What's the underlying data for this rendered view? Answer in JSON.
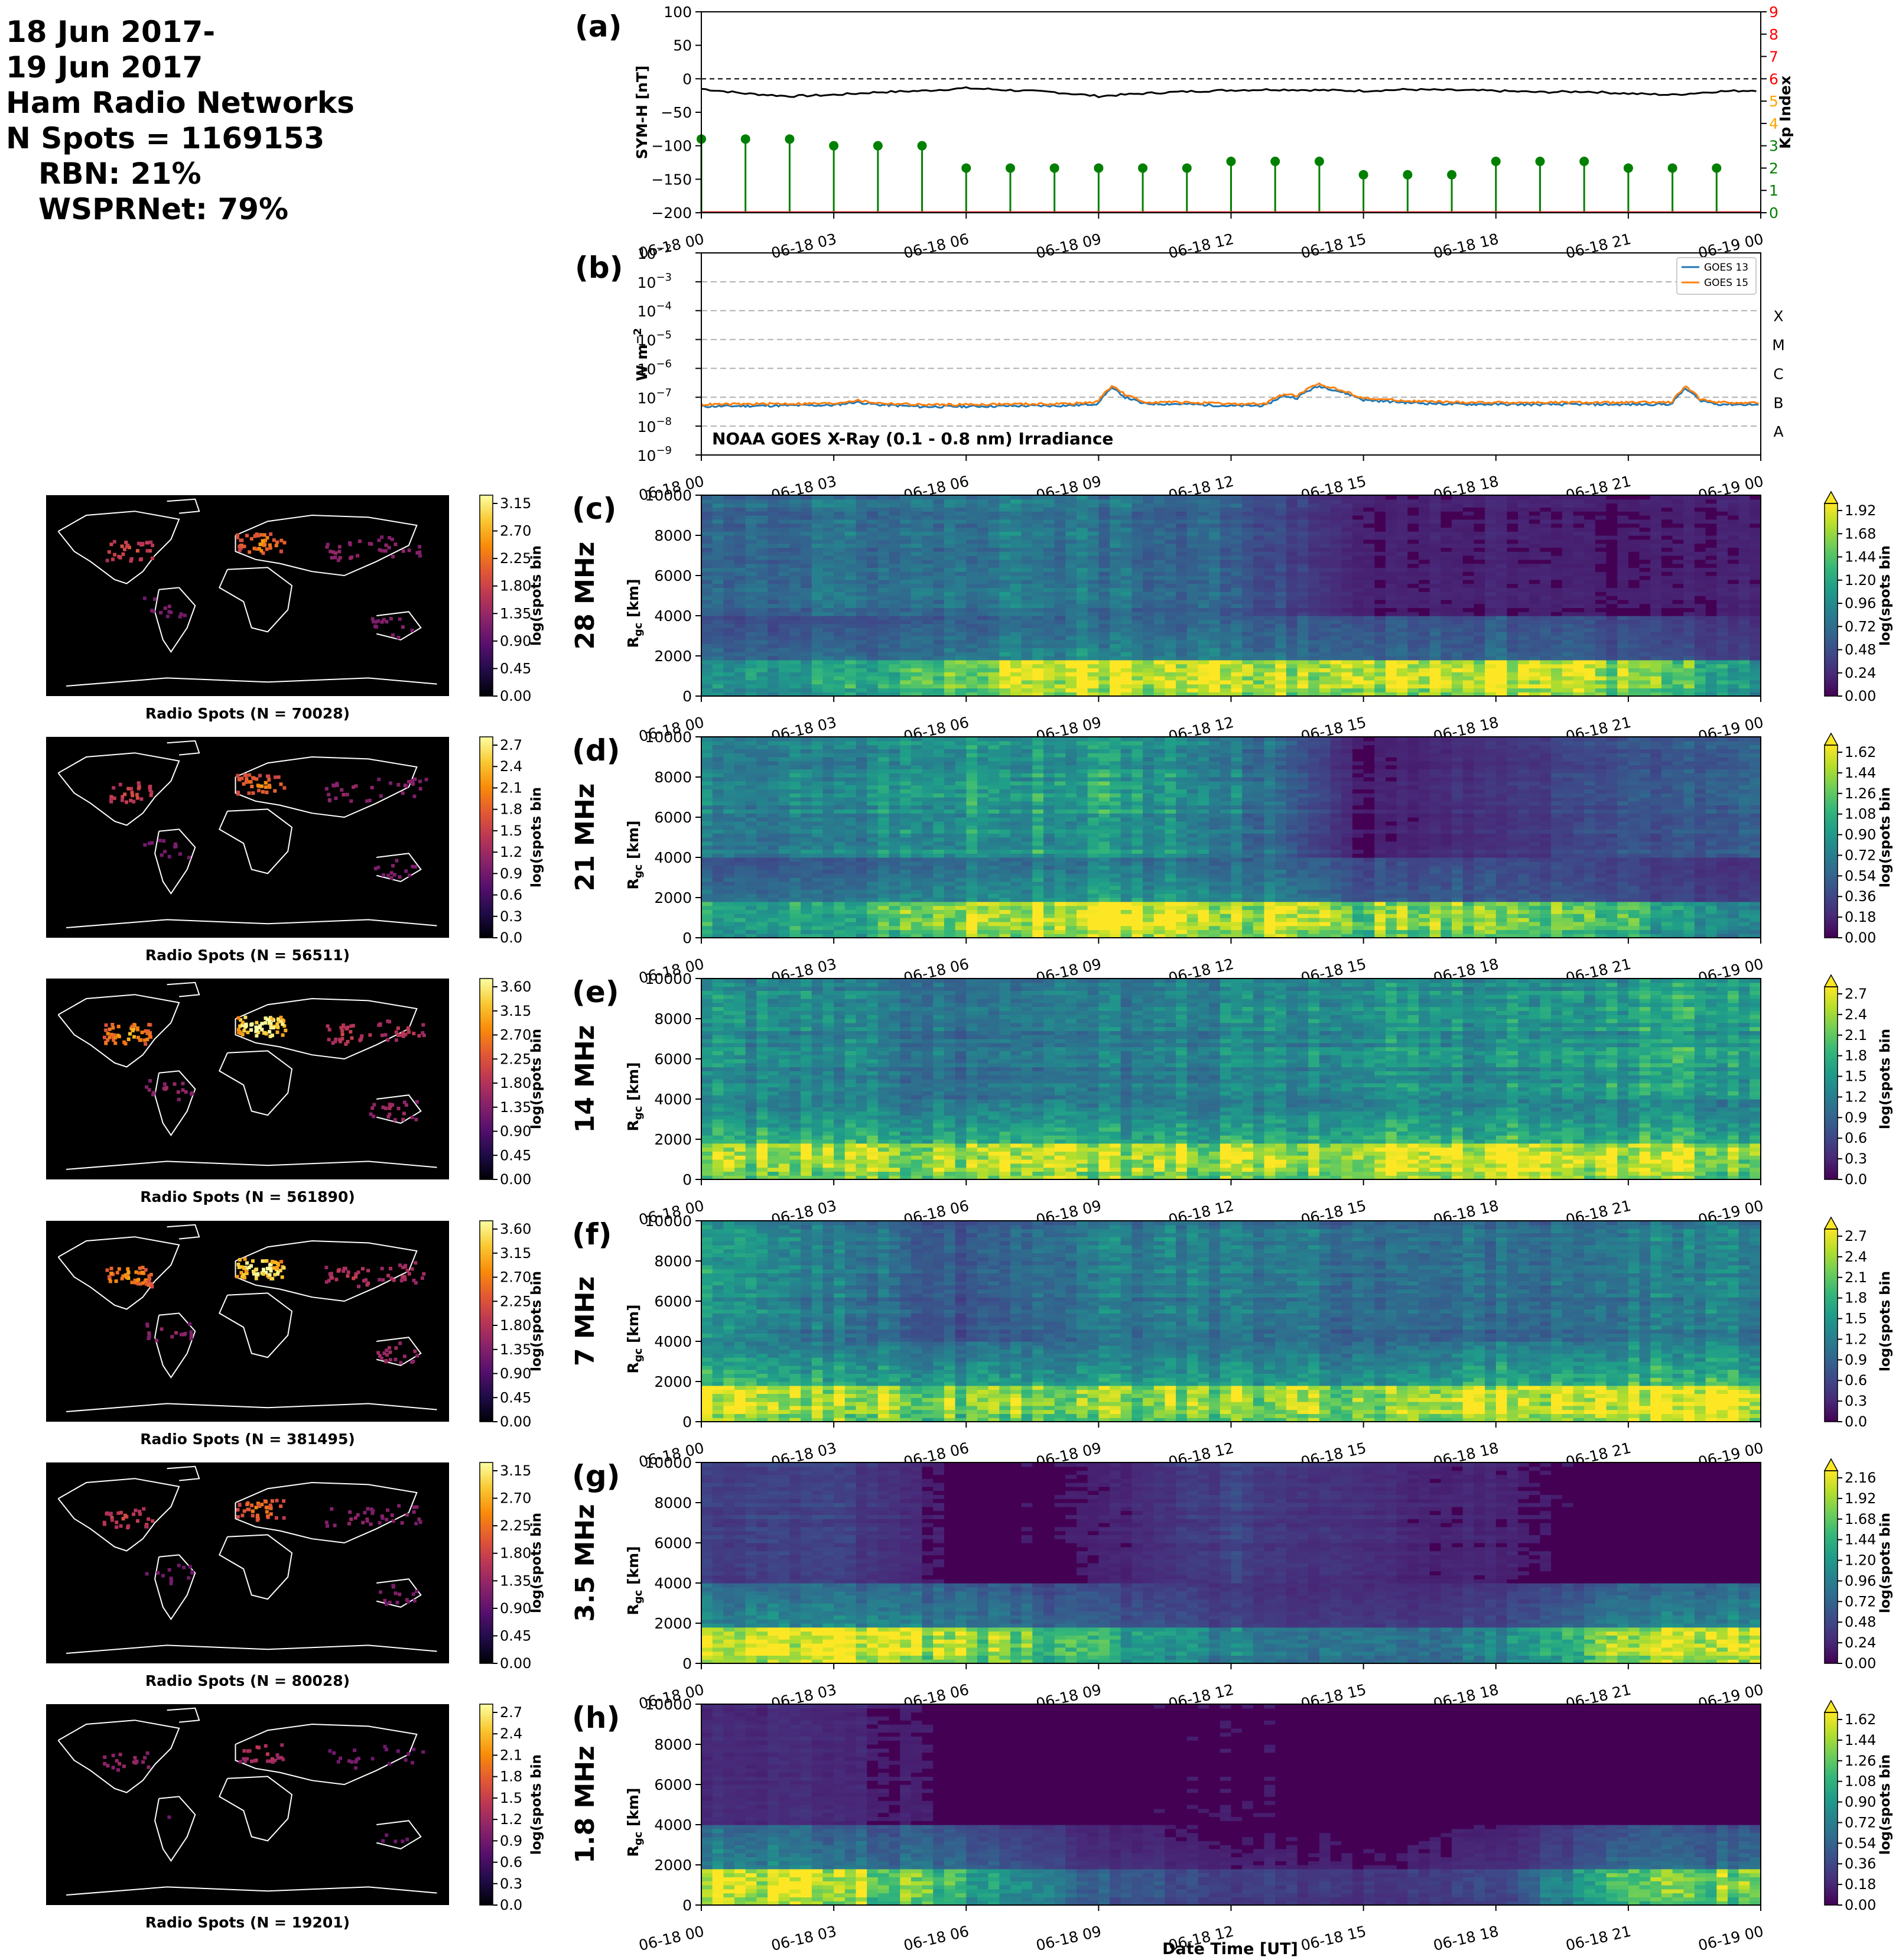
{
  "header": {
    "line1": "18 Jun 2017-",
    "line2": "19 Jun 2017",
    "line3": "Ham Radio Networks",
    "line4": "N Spots = 1169153",
    "line5": "RBN: 21%",
    "line6": "WSPRNet: 79%"
  },
  "time_ticks": [
    "06-18 00",
    "06-18 03",
    "06-18 06",
    "06-18 09",
    "06-18 12",
    "06-18 15",
    "06-18 18",
    "06-18 21",
    "06-19 00"
  ],
  "xlabel": "Date Time [UT]",
  "colors": {
    "symh_line": "#000000",
    "kp_stem": "#008000",
    "kp_axis": "#ff0000",
    "goes13": "#1f77b4",
    "goes15": "#ff7f0e",
    "map_bg": "#000000",
    "coast": "#ffffff"
  },
  "chart_data": [
    {
      "id": "a",
      "panel_label": "(a)",
      "type": "line",
      "ylabel": "SYM-H [nT]",
      "ylabel2": "Kp Index",
      "ylim": [
        -200,
        100
      ],
      "yticks": [
        100,
        50,
        0,
        -50,
        -100,
        -150,
        -200
      ],
      "ylim2": [
        0,
        9
      ],
      "yticks2": [
        0,
        1,
        2,
        3,
        4,
        5,
        6,
        7,
        8,
        9
      ],
      "xlim_hours": [
        0,
        24
      ],
      "symh": {
        "x": [
          0,
          1,
          2,
          3,
          4,
          5,
          6,
          7,
          8,
          9,
          10,
          11,
          12,
          13,
          14,
          15,
          16,
          17,
          18,
          19,
          20,
          21,
          22,
          23,
          24
        ],
        "y": [
          -15,
          -22,
          -26,
          -24,
          -20,
          -18,
          -14,
          -17,
          -20,
          -26,
          -22,
          -19,
          -17,
          -16,
          -17,
          -18,
          -16,
          -17,
          -18,
          -20,
          -19,
          -22,
          -24,
          -19,
          -17
        ]
      },
      "kp": {
        "x": [
          0,
          1,
          2,
          3,
          4,
          5,
          6,
          7,
          8,
          9,
          10,
          11,
          12,
          13,
          14,
          15,
          16,
          17,
          18,
          19,
          20,
          21,
          22,
          23
        ],
        "y": [
          3.3,
          3.3,
          3.3,
          3.0,
          3.0,
          3.0,
          2.0,
          2.0,
          2.0,
          2.0,
          2.0,
          2.0,
          2.3,
          2.3,
          2.3,
          1.7,
          1.7,
          1.7,
          2.3,
          2.3,
          2.3,
          2.0,
          2.0,
          2.0
        ]
      }
    },
    {
      "id": "b",
      "panel_label": "(b)",
      "type": "line",
      "ylabel": "W m$^{-2}$",
      "ylabel_text": "W m",
      "ylabel_sup": "−2",
      "log_ylim": [
        -9,
        -2
      ],
      "ytick_exps": [
        "−2",
        "−3",
        "−4",
        "−5",
        "−6",
        "−7",
        "−8",
        "−9"
      ],
      "class_labels": [
        {
          "label": "X",
          "exp": -4
        },
        {
          "label": "M",
          "exp": -5
        },
        {
          "label": "C",
          "exp": -6
        },
        {
          "label": "B",
          "exp": -7
        },
        {
          "label": "A",
          "exp": -8
        }
      ],
      "annotation": "NOAA GOES X-Ray (0.1 - 0.8 nm) Irradiance",
      "legend": [
        "GOES 13",
        "GOES 15"
      ],
      "legend_loc": "top-right",
      "series": [
        {
          "name": "GOES 13",
          "x": [
            0,
            1,
            2,
            3,
            3.5,
            4,
            5,
            6,
            7,
            8,
            8.5,
            9,
            9.3,
            9.6,
            10,
            11,
            12,
            12.8,
            13.2,
            13.5,
            14,
            14.5,
            15,
            16,
            17,
            18,
            19,
            20,
            21,
            22,
            22.3,
            22.6,
            23,
            24
          ],
          "y": [
            4.8e-08,
            5e-08,
            5.2e-08,
            5.3e-08,
            6.8e-08,
            5.5e-08,
            4.7e-08,
            4.8e-08,
            5e-08,
            5.1e-08,
            5.3e-08,
            6e-08,
            2e-07,
            1e-07,
            6e-08,
            5.8e-08,
            5e-08,
            5.2e-08,
            1.1e-07,
            9.5e-08,
            2.4e-07,
            1.5e-07,
            8e-08,
            6.5e-08,
            5.8e-08,
            5.7e-08,
            5.6e-08,
            5.7e-08,
            5.6e-08,
            5.8e-08,
            1.9e-07,
            8e-08,
            5.8e-08,
            5.5e-08
          ]
        },
        {
          "name": "GOES 15",
          "x": [
            0,
            1,
            2,
            3,
            3.5,
            4,
            5,
            6,
            7,
            8,
            8.5,
            9,
            9.3,
            9.6,
            10,
            11,
            12,
            12.8,
            13.2,
            13.5,
            14,
            14.5,
            15,
            16,
            17,
            18,
            19,
            20,
            21,
            22,
            22.3,
            22.6,
            23,
            24
          ],
          "y": [
            5.6e-08,
            5.8e-08,
            6e-08,
            6.1e-08,
            7.8e-08,
            6.3e-08,
            5.5e-08,
            5.6e-08,
            5.8e-08,
            5.9e-08,
            6.1e-08,
            6.9e-08,
            2.4e-07,
            1.2e-07,
            6.9e-08,
            6.6e-08,
            5.8e-08,
            6e-08,
            1.3e-07,
            1.1e-07,
            2.8e-07,
            1.7e-07,
            9.2e-08,
            7.5e-08,
            6.7e-08,
            6.6e-08,
            6.5e-08,
            6.6e-08,
            6.5e-08,
            6.7e-08,
            2.2e-07,
            9.2e-08,
            6.7e-08,
            6.4e-08
          ]
        }
      ]
    },
    {
      "id": "c",
      "panel_label": "(c)",
      "type": "heatmap",
      "band": "28 MHz",
      "ylabel": "R$_{gc}$ [km]",
      "ylabel_main": "R",
      "ylabel_sub": "gc",
      "ylabel_unit": " [km]",
      "ylim": [
        0,
        10000
      ],
      "yticks": [
        0,
        2000,
        4000,
        6000,
        8000,
        10000
      ],
      "cbar_label": "log(spots bin$^{-1}$)",
      "cbar_ticks": [
        "0.00",
        "0.24",
        "0.48",
        "0.72",
        "0.96",
        "1.20",
        "1.44",
        "1.68",
        "1.92"
      ],
      "map_title": "Radio Spots (N = 70028)",
      "map_cbar_ticks": [
        "0.00",
        "0.45",
        "0.90",
        "1.35",
        "1.80",
        "2.25",
        "2.70",
        "3.15"
      ],
      "profile": {
        "t": [
          0,
          3,
          6,
          9,
          12,
          15,
          18,
          21,
          24
        ],
        "near": [
          0.55,
          0.55,
          0.85,
          1.0,
          0.95,
          0.85,
          1.0,
          0.85,
          0.5
        ],
        "spread": [
          0.35,
          0.28,
          0.35,
          0.35,
          0.3,
          0.15,
          0.18,
          0.12,
          0.1
        ],
        "far": [
          0.35,
          0.35,
          0.4,
          0.38,
          0.3,
          0.08,
          0.1,
          0.08,
          0.1
        ]
      }
    },
    {
      "id": "d",
      "panel_label": "(d)",
      "type": "heatmap",
      "band": "21 MHz",
      "ylabel": "R$_{gc}$ [km]",
      "ylabel_main": "R",
      "ylabel_sub": "gc",
      "ylabel_unit": " [km]",
      "ylim": [
        0,
        10000
      ],
      "yticks": [
        0,
        2000,
        4000,
        6000,
        8000,
        10000
      ],
      "cbar_label": "log(spots bin$^{-1}$)",
      "cbar_ticks": [
        "0.00",
        "0.18",
        "0.36",
        "0.54",
        "0.72",
        "0.90",
        "1.08",
        "1.26",
        "1.44",
        "1.62"
      ],
      "map_title": "Radio Spots (N = 56511)",
      "map_cbar_ticks": [
        "0.0",
        "0.3",
        "0.6",
        "0.9",
        "1.2",
        "1.5",
        "1.8",
        "2.1",
        "2.4",
        "2.7"
      ],
      "profile": {
        "t": [
          0,
          3,
          6,
          9,
          12,
          15,
          18,
          21,
          24
        ],
        "near": [
          0.6,
          0.6,
          0.9,
          1.0,
          0.95,
          0.8,
          0.85,
          0.65,
          0.4
        ],
        "spread": [
          0.35,
          0.35,
          0.45,
          0.45,
          0.4,
          0.15,
          0.15,
          0.12,
          0.1
        ],
        "far": [
          0.45,
          0.45,
          0.55,
          0.55,
          0.45,
          0.08,
          0.15,
          0.25,
          0.3
        ]
      }
    },
    {
      "id": "e",
      "panel_label": "(e)",
      "type": "heatmap",
      "band": "14 MHz",
      "ylabel": "R$_{gc}$ [km]",
      "ylabel_main": "R",
      "ylabel_sub": "gc",
      "ylabel_unit": " [km]",
      "ylim": [
        0,
        10000
      ],
      "yticks": [
        0,
        2000,
        4000,
        6000,
        8000,
        10000
      ],
      "cbar_label": "log(spots bin$^{-1}$)",
      "cbar_ticks": [
        "0.0",
        "0.3",
        "0.6",
        "0.9",
        "1.2",
        "1.5",
        "1.8",
        "2.1",
        "2.4",
        "2.7"
      ],
      "map_title": "Radio Spots (N = 561890)",
      "map_cbar_ticks": [
        "0.00",
        "0.45",
        "0.90",
        "1.35",
        "1.80",
        "2.25",
        "2.70",
        "3.15",
        "3.60"
      ],
      "profile": {
        "t": [
          0,
          3,
          6,
          9,
          12,
          15,
          18,
          21,
          24
        ],
        "near": [
          0.85,
          0.85,
          0.85,
          0.9,
          0.85,
          0.9,
          1.0,
          0.9,
          0.85
        ],
        "spread": [
          0.6,
          0.6,
          0.55,
          0.55,
          0.55,
          0.6,
          0.6,
          0.6,
          0.6
        ],
        "far": [
          0.5,
          0.45,
          0.35,
          0.4,
          0.45,
          0.5,
          0.5,
          0.55,
          0.6
        ]
      }
    },
    {
      "id": "f",
      "panel_label": "(f)",
      "type": "heatmap",
      "band": "7 MHz",
      "ylabel": "R$_{gc}$ [km]",
      "ylabel_main": "R",
      "ylabel_sub": "gc",
      "ylabel_unit": " [km]",
      "ylim": [
        0,
        10000
      ],
      "yticks": [
        0,
        2000,
        4000,
        6000,
        8000,
        10000
      ],
      "cbar_label": "log(spots bin$^{-1}$)",
      "cbar_ticks": [
        "0.0",
        "0.3",
        "0.6",
        "0.9",
        "1.2",
        "1.5",
        "1.8",
        "2.1",
        "2.4",
        "2.7"
      ],
      "map_title": "Radio Spots (N = 381495)",
      "map_cbar_ticks": [
        "0.00",
        "0.45",
        "0.90",
        "1.35",
        "1.80",
        "2.25",
        "2.70",
        "3.15",
        "3.60"
      ],
      "profile": {
        "t": [
          0,
          3,
          6,
          9,
          12,
          15,
          18,
          21,
          24
        ],
        "near": [
          0.9,
          0.85,
          0.8,
          0.8,
          0.8,
          0.85,
          0.95,
          1.0,
          1.0
        ],
        "spread": [
          0.6,
          0.55,
          0.5,
          0.5,
          0.5,
          0.45,
          0.55,
          0.6,
          0.6
        ],
        "far": [
          0.5,
          0.4,
          0.25,
          0.4,
          0.4,
          0.35,
          0.35,
          0.4,
          0.45
        ]
      }
    },
    {
      "id": "g",
      "panel_label": "(g)",
      "type": "heatmap",
      "band": "3.5 MHz",
      "ylabel": "R$_{gc}$ [km]",
      "ylabel_main": "R",
      "ylabel_sub": "gc",
      "ylabel_unit": " [km]",
      "ylim": [
        0,
        10000
      ],
      "yticks": [
        0,
        2000,
        4000,
        6000,
        8000,
        10000
      ],
      "cbar_label": "log(spots bin$^{-1}$)",
      "cbar_ticks": [
        "0.00",
        "0.24",
        "0.48",
        "0.72",
        "0.96",
        "1.20",
        "1.44",
        "1.68",
        "1.92",
        "2.16"
      ],
      "map_title": "Radio Spots (N = 80028)",
      "map_cbar_ticks": [
        "0.00",
        "0.45",
        "0.90",
        "1.35",
        "1.80",
        "2.25",
        "2.70",
        "3.15"
      ],
      "profile": {
        "t": [
          0,
          3,
          6,
          9,
          12,
          15,
          18,
          21,
          24
        ],
        "near": [
          1.0,
          1.0,
          0.85,
          0.6,
          0.45,
          0.35,
          0.45,
          0.9,
          0.95
        ],
        "spread": [
          0.4,
          0.35,
          0.3,
          0.2,
          0.15,
          0.1,
          0.15,
          0.35,
          0.35
        ],
        "far": [
          0.2,
          0.2,
          0.05,
          0.08,
          0.2,
          0.12,
          0.1,
          0.05,
          0.05
        ]
      }
    },
    {
      "id": "h",
      "panel_label": "(h)",
      "type": "heatmap",
      "band": "1.8 MHz",
      "ylabel": "R$_{gc}$ [km]",
      "ylabel_main": "R",
      "ylabel_sub": "gc",
      "ylabel_unit": " [km]",
      "ylim": [
        0,
        10000
      ],
      "yticks": [
        0,
        2000,
        4000,
        6000,
        8000,
        10000
      ],
      "cbar_label": "log(spots bin$^{-1}$)",
      "cbar_ticks": [
        "0.00",
        "0.18",
        "0.36",
        "0.54",
        "0.72",
        "0.90",
        "1.08",
        "1.26",
        "1.44",
        "1.62"
      ],
      "map_title": "Radio Spots (N = 19201)",
      "map_cbar_ticks": [
        "0.0",
        "0.3",
        "0.6",
        "0.9",
        "1.2",
        "1.5",
        "1.8",
        "2.1",
        "2.4",
        "2.7"
      ],
      "profile": {
        "t": [
          0,
          3,
          6,
          9,
          12,
          15,
          18,
          21,
          24
        ],
        "near": [
          1.0,
          0.95,
          0.6,
          0.3,
          0.2,
          0.15,
          0.2,
          0.7,
          0.85
        ],
        "spread": [
          0.35,
          0.3,
          0.25,
          0.1,
          0.08,
          0.06,
          0.1,
          0.25,
          0.25
        ],
        "far": [
          0.12,
          0.12,
          0.05,
          0.04,
          0.08,
          0.03,
          0.03,
          0.04,
          0.04
        ]
      }
    }
  ]
}
